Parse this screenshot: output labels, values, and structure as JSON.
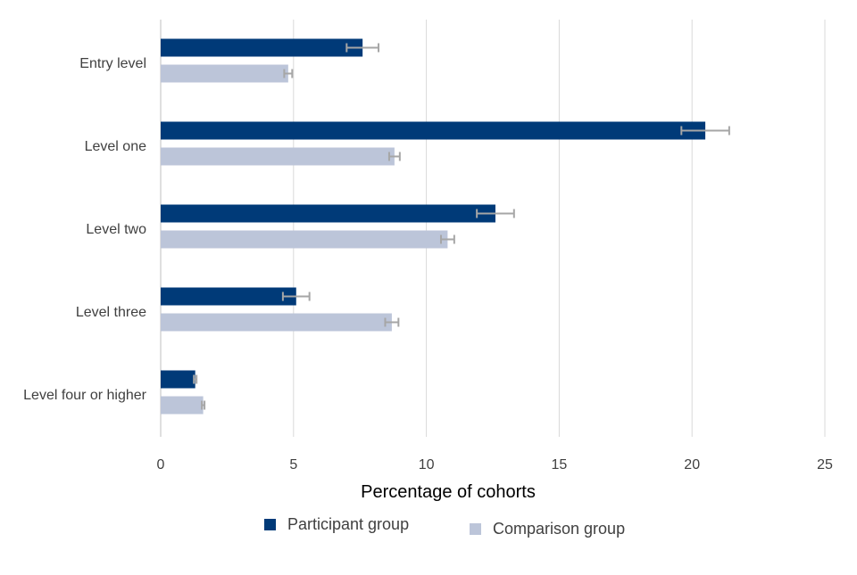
{
  "chart_data": {
    "type": "bar",
    "orientation": "horizontal",
    "categories": [
      "Entry level",
      "Level one",
      "Level two",
      "Level three",
      "Level four or higher"
    ],
    "series": [
      {
        "name": "Participant group",
        "color": "#003A78",
        "values": [
          7.6,
          20.5,
          12.6,
          5.1,
          1.3
        ],
        "error": [
          0.6,
          0.9,
          0.7,
          0.5,
          0.05
        ]
      },
      {
        "name": "Comparison group",
        "color": "#BCC5D9",
        "values": [
          4.8,
          8.8,
          10.8,
          8.7,
          1.6
        ],
        "error": [
          0.15,
          0.2,
          0.25,
          0.25,
          0.05
        ]
      }
    ],
    "xlabel": "Percentage of cohorts",
    "ylabel": "",
    "xlim": [
      0,
      25
    ],
    "xticks": [
      0,
      5,
      10,
      15,
      20,
      25
    ],
    "grid": "vertical",
    "legend_position": "bottom",
    "error_bar_color": "#A6A6A6"
  }
}
